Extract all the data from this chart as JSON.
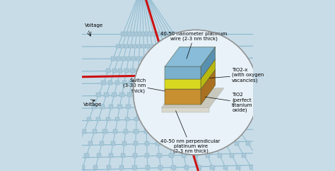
{
  "bg_color": "#c8dce8",
  "wire_color": "#8ab8cc",
  "red_wire_color": "#cc1111",
  "circle_bg": "#e8f2f8",
  "layer_top_front": "#7ab0cc",
  "layer_top_top": "#88bcd8",
  "layer_top_side": "#5890b0",
  "layer_mid_front": "#d8d820",
  "layer_mid_top": "#e0e030",
  "layer_mid_side": "#b8b810",
  "layer_bot_front": "#c89030",
  "layer_bot_top": "#d4a040",
  "layer_bot_side": "#a87020",
  "wire_slab_color": "#d8d8cc",
  "wire_slab_top": "#c8c8bc",
  "label_voltage1": "Voltage",
  "label_voltage2": "Voltage",
  "label_top_wire": "40-50 nanometer platinum\nwire (2-3 nm thick)",
  "label_switch": "Switch\n(3-30 nm\nthick)",
  "label_tio2x": "TiO2-x\n(with oxygen\nvacancies)",
  "label_tio2": "TiO2\n(perfect\ntitanium\noxide)",
  "label_bot_wire": "40-50 nm perpendicular\nplatinum wire\n(2-3 nm thick)",
  "font_size": 5.0
}
